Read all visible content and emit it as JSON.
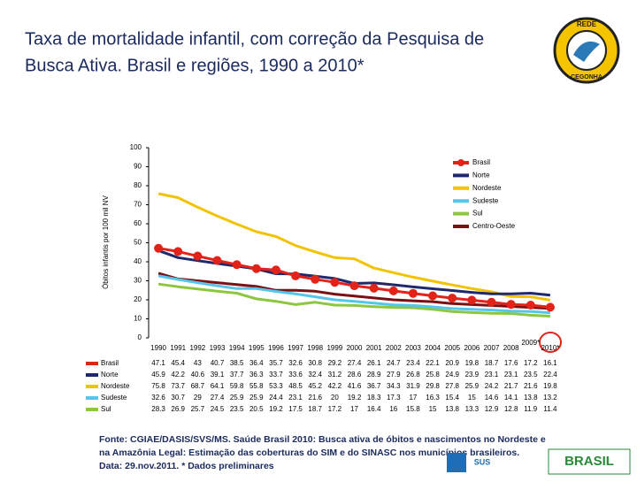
{
  "chart_data": {
    "type": "line",
    "title_lines": [
      "Taxa de mortalidade infantil, com correção da Pesquisa de",
      "Busca Ativa.  Brasil e regiões, 1990 a 2010*"
    ],
    "y_label": "Óbitos infantis por 100 mil NV",
    "categories": [
      "1990",
      "1991",
      "1992",
      "1993",
      "1994",
      "1995",
      "1996",
      "1997",
      "1998",
      "1999",
      "2000",
      "2001",
      "2002",
      "2003",
      "2004",
      "2005",
      "2006",
      "2007",
      "2008",
      "2009*",
      "2010*"
    ],
    "series": [
      {
        "name": "Brasil",
        "color": "#e2231a",
        "markers": true,
        "values": [
          47.1,
          45.4,
          43.0,
          40.7,
          38.5,
          36.4,
          35.7,
          32.6,
          30.8,
          29.2,
          27.4,
          26.1,
          24.7,
          23.4,
          22.1,
          20.9,
          19.8,
          18.7,
          17.6,
          17.2,
          16.1
        ]
      },
      {
        "name": "Norte",
        "color": "#1f2a6e",
        "values": [
          45.9,
          42.2,
          40.6,
          39.1,
          37.7,
          36.3,
          33.7,
          33.6,
          32.4,
          31.2,
          28.6,
          28.9,
          27.9,
          26.8,
          25.8,
          24.9,
          23.9,
          23.1,
          23.1,
          23.5,
          22.4
        ]
      },
      {
        "name": "Nordeste",
        "color": "#f2c300",
        "values": [
          75.8,
          73.7,
          68.7,
          64.1,
          59.8,
          55.8,
          53.3,
          48.5,
          45.2,
          42.2,
          41.6,
          36.7,
          34.3,
          31.9,
          29.8,
          27.8,
          25.9,
          24.2,
          21.7,
          21.6,
          19.8
        ]
      },
      {
        "name": "Sudeste",
        "color": "#55c5ea",
        "values": [
          32.6,
          30.7,
          29.0,
          27.4,
          25.9,
          25.9,
          24.4,
          23.1,
          21.6,
          20.0,
          19.2,
          18.3,
          17.3,
          17.0,
          16.3,
          15.4,
          15.0,
          14.6,
          14.1,
          13.8,
          13.2
        ]
      },
      {
        "name": "Sul",
        "color": "#8dc63f",
        "values": [
          28.3,
          26.9,
          25.7,
          24.5,
          23.5,
          20.5,
          19.2,
          17.5,
          18.7,
          17.2,
          17.0,
          16.4,
          16.0,
          15.8,
          15.0,
          13.8,
          13.3,
          12.9,
          12.8,
          11.9,
          11.4
        ]
      },
      {
        "name": "Centro-Oeste",
        "color": "#7a1014",
        "values": [
          34,
          31,
          30,
          29,
          28,
          27,
          25,
          25,
          24.5,
          23,
          22,
          21,
          20,
          19.5,
          19,
          18,
          17.5,
          17,
          16.5,
          16,
          15.5
        ]
      }
    ],
    "table_series": 5,
    "ylim": [
      0,
      100
    ],
    "yticks": [
      0,
      10,
      20,
      30,
      40,
      50,
      60,
      70,
      80,
      90,
      100
    ],
    "legend": "top-right",
    "footnote_lines": [
      "Fonte: CGIAE/DASIS/SVS/MS. Saúde Brasil 2010: Busca ativa de óbitos e nascimentos no Nordeste e",
      "na Amazônia Legal: Estimação das coberturas do SIM e do SINASC nos municípios brasileiros.",
      "Data: 29.nov.2011. * Dados preliminares"
    ],
    "logo_texts": [
      "REDE",
      "CEGONHA",
      "SUS",
      "BRASIL"
    ]
  }
}
